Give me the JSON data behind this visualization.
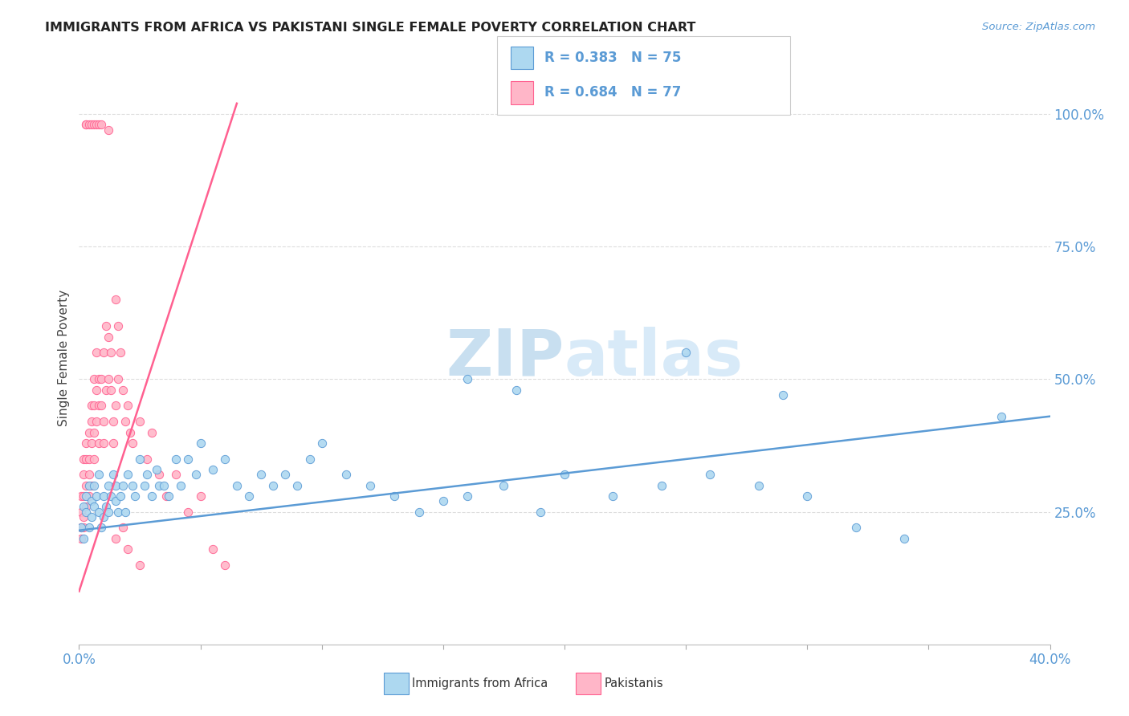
{
  "title": "IMMIGRANTS FROM AFRICA VS PAKISTANI SINGLE FEMALE POVERTY CORRELATION CHART",
  "source": "Source: ZipAtlas.com",
  "ylabel": "Single Female Poverty",
  "right_yticks": [
    "100.0%",
    "75.0%",
    "50.0%",
    "25.0%"
  ],
  "right_ytick_vals": [
    1.0,
    0.75,
    0.5,
    0.25
  ],
  "xlim": [
    0.0,
    0.4
  ],
  "ylim": [
    0.0,
    1.08
  ],
  "legend_blue_label": "Immigrants from Africa",
  "legend_pink_label": "Pakistanis",
  "legend_r_blue": "R = 0.383",
  "legend_n_blue": "N = 75",
  "legend_r_pink": "R = 0.684",
  "legend_n_pink": "N = 77",
  "blue_color": "#ADD8F0",
  "pink_color": "#FFB6C8",
  "line_blue_color": "#5B9BD5",
  "line_pink_color": "#FF6090",
  "watermark_color": "#C8DFF0",
  "background_color": "#FFFFFF",
  "blue_scatter_x": [
    0.001,
    0.002,
    0.002,
    0.003,
    0.003,
    0.004,
    0.004,
    0.005,
    0.005,
    0.006,
    0.006,
    0.007,
    0.008,
    0.008,
    0.009,
    0.01,
    0.01,
    0.011,
    0.012,
    0.012,
    0.013,
    0.014,
    0.015,
    0.015,
    0.016,
    0.017,
    0.018,
    0.019,
    0.02,
    0.022,
    0.023,
    0.025,
    0.027,
    0.028,
    0.03,
    0.032,
    0.033,
    0.035,
    0.037,
    0.04,
    0.042,
    0.045,
    0.048,
    0.05,
    0.055,
    0.06,
    0.065,
    0.07,
    0.075,
    0.08,
    0.085,
    0.09,
    0.095,
    0.1,
    0.11,
    0.12,
    0.13,
    0.14,
    0.15,
    0.16,
    0.175,
    0.19,
    0.2,
    0.22,
    0.24,
    0.26,
    0.28,
    0.3,
    0.32,
    0.34,
    0.25,
    0.29,
    0.18,
    0.38,
    0.16
  ],
  "blue_scatter_y": [
    0.22,
    0.2,
    0.26,
    0.25,
    0.28,
    0.22,
    0.3,
    0.24,
    0.27,
    0.26,
    0.3,
    0.28,
    0.25,
    0.32,
    0.22,
    0.24,
    0.28,
    0.26,
    0.3,
    0.25,
    0.28,
    0.32,
    0.27,
    0.3,
    0.25,
    0.28,
    0.3,
    0.25,
    0.32,
    0.3,
    0.28,
    0.35,
    0.3,
    0.32,
    0.28,
    0.33,
    0.3,
    0.3,
    0.28,
    0.35,
    0.3,
    0.35,
    0.32,
    0.38,
    0.33,
    0.35,
    0.3,
    0.28,
    0.32,
    0.3,
    0.32,
    0.3,
    0.35,
    0.38,
    0.32,
    0.3,
    0.28,
    0.25,
    0.27,
    0.28,
    0.3,
    0.25,
    0.32,
    0.28,
    0.3,
    0.32,
    0.3,
    0.28,
    0.22,
    0.2,
    0.55,
    0.47,
    0.48,
    0.43,
    0.5
  ],
  "pink_scatter_x": [
    0.001,
    0.001,
    0.001,
    0.001,
    0.002,
    0.002,
    0.002,
    0.002,
    0.002,
    0.003,
    0.003,
    0.003,
    0.003,
    0.004,
    0.004,
    0.004,
    0.004,
    0.005,
    0.005,
    0.005,
    0.005,
    0.006,
    0.006,
    0.006,
    0.006,
    0.007,
    0.007,
    0.007,
    0.008,
    0.008,
    0.008,
    0.009,
    0.009,
    0.01,
    0.01,
    0.01,
    0.011,
    0.011,
    0.012,
    0.012,
    0.013,
    0.013,
    0.014,
    0.014,
    0.015,
    0.015,
    0.016,
    0.016,
    0.017,
    0.018,
    0.019,
    0.02,
    0.021,
    0.022,
    0.025,
    0.028,
    0.03,
    0.033,
    0.036,
    0.04,
    0.045,
    0.05,
    0.055,
    0.06,
    0.003,
    0.003,
    0.004,
    0.005,
    0.006,
    0.007,
    0.008,
    0.009,
    0.012,
    0.015,
    0.018,
    0.02,
    0.025
  ],
  "pink_scatter_y": [
    0.22,
    0.25,
    0.28,
    0.2,
    0.24,
    0.28,
    0.32,
    0.35,
    0.22,
    0.26,
    0.3,
    0.35,
    0.38,
    0.32,
    0.4,
    0.28,
    0.35,
    0.38,
    0.45,
    0.3,
    0.42,
    0.4,
    0.45,
    0.35,
    0.5,
    0.42,
    0.48,
    0.55,
    0.45,
    0.5,
    0.38,
    0.5,
    0.45,
    0.38,
    0.42,
    0.55,
    0.48,
    0.6,
    0.5,
    0.58,
    0.55,
    0.48,
    0.42,
    0.38,
    0.45,
    0.65,
    0.5,
    0.6,
    0.55,
    0.48,
    0.42,
    0.45,
    0.4,
    0.38,
    0.42,
    0.35,
    0.4,
    0.32,
    0.28,
    0.32,
    0.25,
    0.28,
    0.18,
    0.15,
    0.98,
    0.98,
    0.98,
    0.98,
    0.98,
    0.98,
    0.98,
    0.98,
    0.97,
    0.2,
    0.22,
    0.18,
    0.15
  ],
  "blue_line_x": [
    0.0,
    0.4
  ],
  "blue_line_y": [
    0.215,
    0.43
  ],
  "pink_line_x": [
    0.0,
    0.065
  ],
  "pink_line_y": [
    0.1,
    1.02
  ]
}
